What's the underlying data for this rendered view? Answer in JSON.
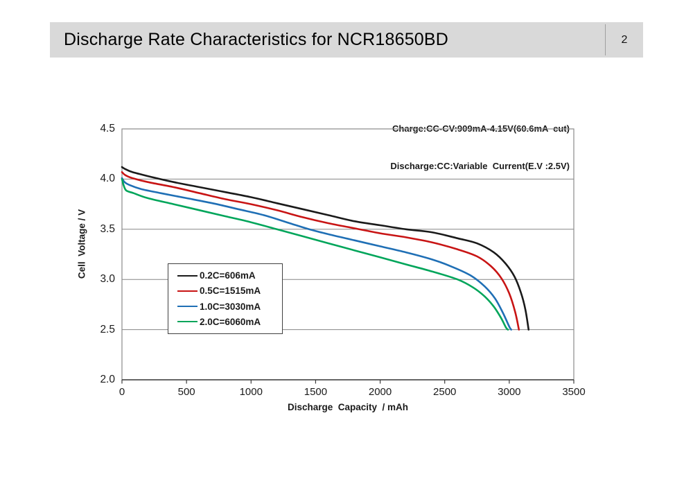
{
  "header": {
    "title": "Discharge Rate Characteristics for NCR18650BD",
    "page_number": "2"
  },
  "chart_data": {
    "type": "line",
    "annotation_lines": [
      "Charge:CC-CV:909mA-4.15V(60.6mA  cut)",
      "Discharge:CC:Variable  Current(E.V :2.5V)"
    ],
    "xlabel": "Discharge  Capacity  / mAh",
    "ylabel": "Cell  Voltage / V",
    "xlim": [
      0,
      3500
    ],
    "ylim": [
      2.0,
      4.5
    ],
    "x_ticks": [
      0,
      500,
      1000,
      1500,
      2000,
      2500,
      3000,
      3500
    ],
    "y_ticks": [
      4.5,
      4.0,
      3.5,
      3.0,
      2.5,
      2.0
    ],
    "y_gridlines": [
      4.0,
      3.5,
      3.0,
      2.5
    ],
    "grid_on": true,
    "legend_position": "center-left-in-plot",
    "colors": {
      "grid": "#858585",
      "plot_border": "#8a8a8a",
      "axis": "#3a3a3a",
      "header_bar": "#d9d9d9"
    },
    "series": [
      {
        "name": "0.2C=606mA",
        "color": "#1a1a1a",
        "points": [
          [
            0,
            4.12
          ],
          [
            25,
            4.1
          ],
          [
            80,
            4.07
          ],
          [
            200,
            4.03
          ],
          [
            400,
            3.97
          ],
          [
            600,
            3.92
          ],
          [
            800,
            3.87
          ],
          [
            1000,
            3.82
          ],
          [
            1200,
            3.76
          ],
          [
            1400,
            3.7
          ],
          [
            1600,
            3.64
          ],
          [
            1800,
            3.58
          ],
          [
            2000,
            3.54
          ],
          [
            2200,
            3.5
          ],
          [
            2400,
            3.47
          ],
          [
            2600,
            3.41
          ],
          [
            2750,
            3.36
          ],
          [
            2880,
            3.27
          ],
          [
            2970,
            3.16
          ],
          [
            3040,
            3.03
          ],
          [
            3090,
            2.87
          ],
          [
            3125,
            2.7
          ],
          [
            3150,
            2.5
          ]
        ]
      },
      {
        "name": "0.5C=1515mA",
        "color": "#c81414",
        "points": [
          [
            0,
            4.07
          ],
          [
            25,
            4.04
          ],
          [
            80,
            4.01
          ],
          [
            200,
            3.97
          ],
          [
            400,
            3.92
          ],
          [
            600,
            3.86
          ],
          [
            800,
            3.8
          ],
          [
            1000,
            3.75
          ],
          [
            1200,
            3.69
          ],
          [
            1400,
            3.62
          ],
          [
            1600,
            3.56
          ],
          [
            1800,
            3.51
          ],
          [
            2000,
            3.46
          ],
          [
            2200,
            3.42
          ],
          [
            2400,
            3.37
          ],
          [
            2600,
            3.3
          ],
          [
            2750,
            3.23
          ],
          [
            2860,
            3.13
          ],
          [
            2940,
            3.01
          ],
          [
            3000,
            2.86
          ],
          [
            3045,
            2.68
          ],
          [
            3075,
            2.5
          ]
        ]
      },
      {
        "name": "1.0C=3030mA",
        "color": "#1f6fb5",
        "points": [
          [
            0,
            4.01
          ],
          [
            20,
            3.97
          ],
          [
            60,
            3.94
          ],
          [
            150,
            3.9
          ],
          [
            300,
            3.86
          ],
          [
            500,
            3.81
          ],
          [
            700,
            3.76
          ],
          [
            900,
            3.7
          ],
          [
            1100,
            3.64
          ],
          [
            1300,
            3.56
          ],
          [
            1450,
            3.5
          ],
          [
            1600,
            3.45
          ],
          [
            1800,
            3.39
          ],
          [
            2000,
            3.33
          ],
          [
            2200,
            3.27
          ],
          [
            2400,
            3.2
          ],
          [
            2550,
            3.13
          ],
          [
            2700,
            3.04
          ],
          [
            2810,
            2.93
          ],
          [
            2890,
            2.81
          ],
          [
            2950,
            2.67
          ],
          [
            3000,
            2.53
          ],
          [
            3015,
            2.5
          ]
        ]
      },
      {
        "name": "2.0C=6060mA",
        "color": "#00a55a",
        "points": [
          [
            0,
            4.0
          ],
          [
            15,
            3.93
          ],
          [
            35,
            3.885
          ],
          [
            90,
            3.86
          ],
          [
            200,
            3.81
          ],
          [
            400,
            3.75
          ],
          [
            600,
            3.69
          ],
          [
            800,
            3.63
          ],
          [
            1000,
            3.57
          ],
          [
            1200,
            3.5
          ],
          [
            1400,
            3.43
          ],
          [
            1600,
            3.36
          ],
          [
            1800,
            3.29
          ],
          [
            2000,
            3.22
          ],
          [
            2200,
            3.15
          ],
          [
            2400,
            3.08
          ],
          [
            2600,
            3.0
          ],
          [
            2720,
            2.92
          ],
          [
            2810,
            2.83
          ],
          [
            2880,
            2.73
          ],
          [
            2935,
            2.62
          ],
          [
            2975,
            2.52
          ],
          [
            2990,
            2.5
          ]
        ]
      }
    ]
  }
}
